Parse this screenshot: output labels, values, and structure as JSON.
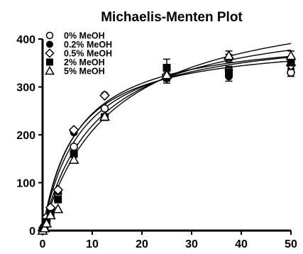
{
  "chart_data": {
    "type": "scatter",
    "title": "Michaelis-Menten Plot",
    "xlabel": "",
    "ylabel": "",
    "xlim": [
      0,
      50
    ],
    "ylim": [
      0,
      400
    ],
    "xticks": [
      0,
      10,
      20,
      30,
      40,
      50
    ],
    "yticks": [
      0,
      100,
      200,
      300,
      400
    ],
    "grid": false,
    "legend_position": "top-left",
    "marker_color": "#000000",
    "series": [
      {
        "name": "0% MeOH",
        "marker": "circle-open",
        "x": [
          0,
          0.4,
          0.8,
          1.6,
          3.1,
          6.3,
          12.5,
          25,
          37.5,
          50
        ],
        "y": [
          0,
          8,
          22,
          42,
          78,
          175,
          255,
          320,
          335,
          330
        ],
        "yerr": [
          0,
          0,
          0,
          0,
          0,
          0,
          0,
          8,
          8,
          8
        ],
        "fit": {
          "vmax": 420,
          "km": 8.0
        }
      },
      {
        "name": "0.2% MeOH",
        "marker": "circle-filled",
        "x": [
          0,
          0.4,
          0.8,
          1.6,
          3.1,
          6.3,
          12.5,
          25,
          37.5,
          50
        ],
        "y": [
          0,
          9,
          25,
          45,
          82,
          205,
          283,
          318,
          322,
          345
        ],
        "yerr": [
          0,
          0,
          0,
          0,
          0,
          0,
          0,
          10,
          10,
          8
        ],
        "fit": {
          "vmax": 400,
          "km": 6.5
        }
      },
      {
        "name": "0.5% MeOH",
        "marker": "diamond-open",
        "x": [
          0,
          0.4,
          0.8,
          1.6,
          3.1,
          6.3,
          12.5,
          25,
          37.5,
          50
        ],
        "y": [
          0,
          10,
          28,
          48,
          85,
          210,
          282,
          325,
          360,
          345
        ],
        "yerr": [
          0,
          0,
          0,
          0,
          0,
          0,
          0,
          10,
          8,
          8
        ],
        "fit": {
          "vmax": 415,
          "km": 7.0
        }
      },
      {
        "name": "2% MeOH",
        "marker": "square-filled",
        "x": [
          0,
          0.4,
          0.8,
          1.6,
          3.1,
          6.3,
          12.5,
          25,
          37.5,
          50
        ],
        "y": [
          0,
          6,
          18,
          35,
          65,
          160,
          237,
          340,
          330,
          352
        ],
        "yerr": [
          0,
          0,
          0,
          0,
          0,
          0,
          0,
          18,
          10,
          8
        ],
        "fit": {
          "vmax": 460,
          "km": 11.0
        }
      },
      {
        "name": "5% MeOH",
        "marker": "triangle-open",
        "x": [
          0,
          0.4,
          0.8,
          1.6,
          3.1,
          6.3,
          12.5,
          25,
          37.5,
          50
        ],
        "y": [
          0,
          5,
          15,
          32,
          45,
          148,
          238,
          325,
          365,
          365
        ],
        "yerr": [
          0,
          0,
          0,
          0,
          0,
          0,
          0,
          12,
          10,
          10
        ],
        "fit": {
          "vmax": 500,
          "km": 14.0
        }
      }
    ]
  }
}
